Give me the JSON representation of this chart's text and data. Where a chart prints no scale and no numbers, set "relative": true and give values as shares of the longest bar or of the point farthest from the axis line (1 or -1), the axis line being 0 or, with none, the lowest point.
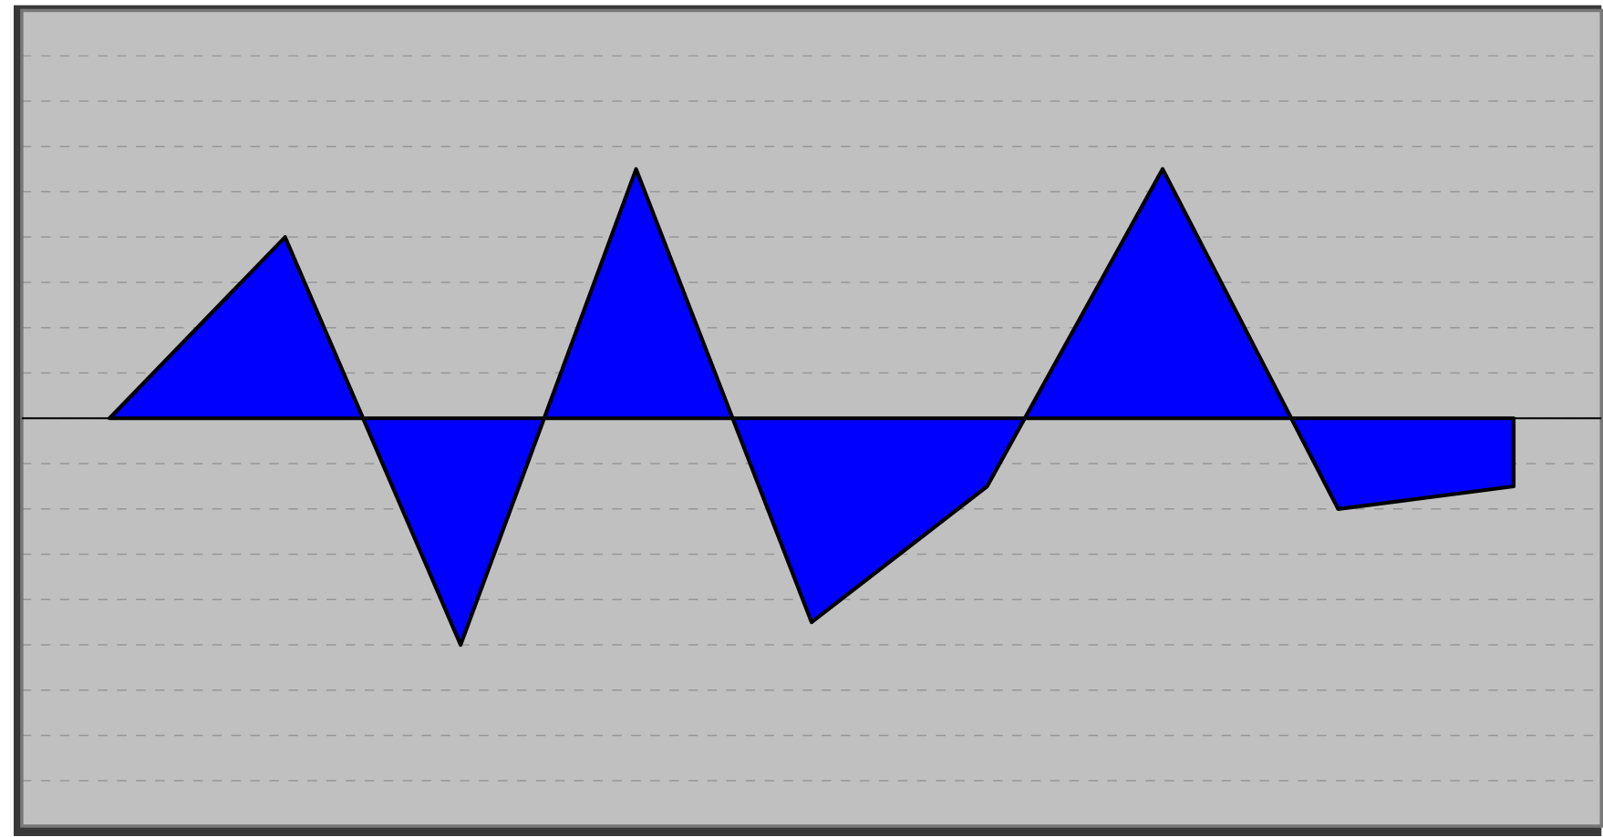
{
  "chart_data": {
    "type": "area",
    "relative": true,
    "grid": "y",
    "categories": [
      null,
      null,
      null,
      null,
      null,
      null,
      null,
      null,
      null
    ],
    "series": [
      {
        "color": "#0000ff",
        "values": [
          0,
          0.727,
          -0.909,
          1,
          -0.818,
          -0.273,
          1,
          -0.364,
          -0.273
        ]
      }
    ]
  }
}
